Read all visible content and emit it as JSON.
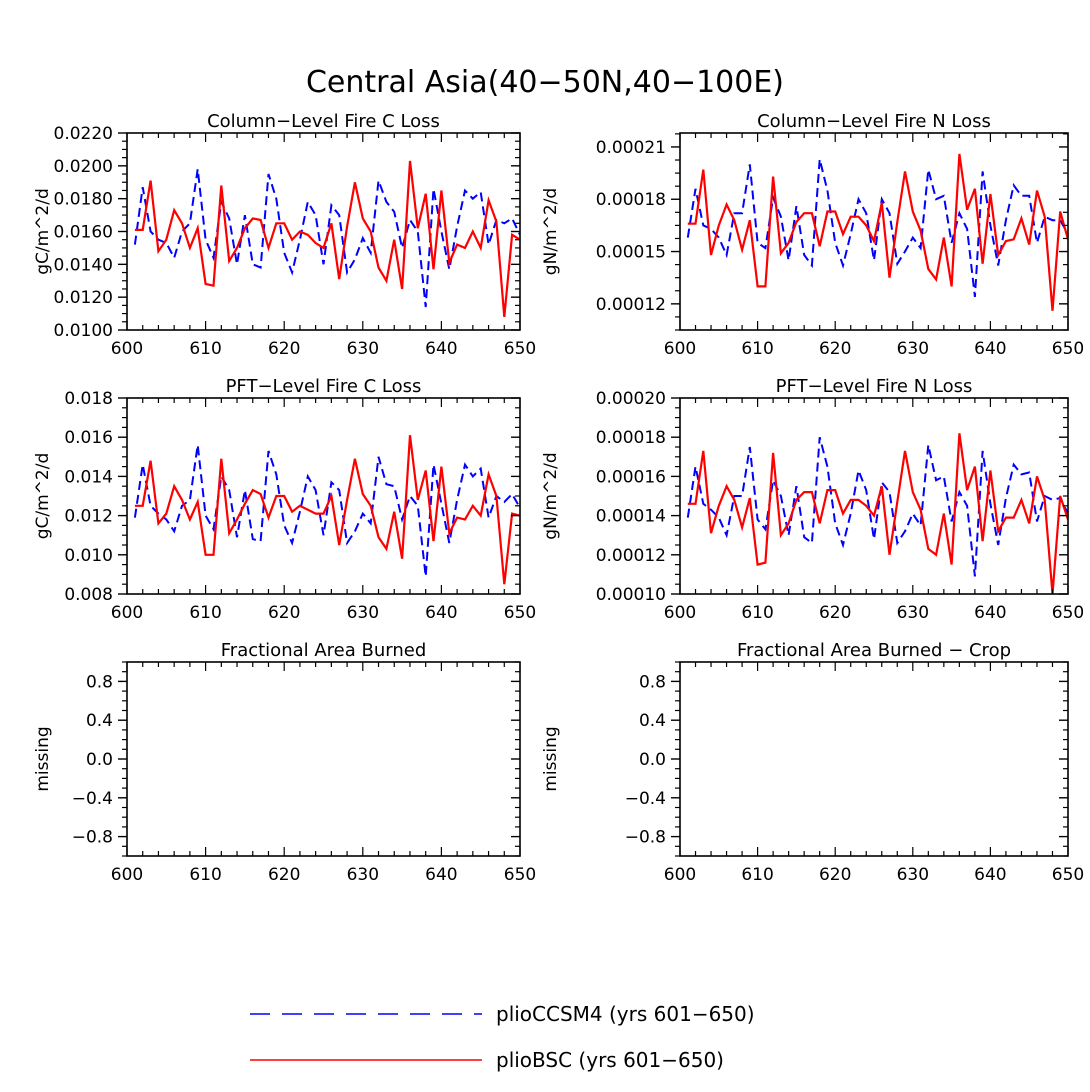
{
  "figure": {
    "title": "Central Asia(40−50N,40−100E)"
  },
  "colors": {
    "ccsm4": "#0000ff",
    "bsc": "#ff0000",
    "axis": "#000000"
  },
  "legend": {
    "entries": [
      {
        "name": "plioCCSM4 (yrs 601−650)",
        "style": "dashed",
        "color": "#0000ff"
      },
      {
        "name": "plioBSC (yrs 601−650)",
        "style": "solid",
        "color": "#ff0000"
      }
    ]
  },
  "chart_data": [
    {
      "type": "line",
      "title": "Column−Level Fire C Loss",
      "ylabel": "gC/m^2/d",
      "xlabel": "",
      "xlim": [
        600,
        650
      ],
      "ylim": [
        0.01,
        0.022
      ],
      "xticks": [
        600,
        610,
        620,
        630,
        640,
        650
      ],
      "xtick_labels": [
        "600",
        "610",
        "620",
        "630",
        "640",
        "650"
      ],
      "yticks": [
        0.01,
        0.012,
        0.014,
        0.016,
        0.018,
        0.02,
        0.022
      ],
      "ytick_labels": [
        "0.0100",
        "0.0120",
        "0.0140",
        "0.0160",
        "0.0180",
        "0.0200",
        "0.0220"
      ],
      "x_start": 601,
      "series": [
        {
          "name": "plioCCSM4 (yrs 601−650)",
          "values": [
            0.0152,
            0.0187,
            0.016,
            0.0155,
            0.0153,
            0.0144,
            0.016,
            0.0165,
            0.0198,
            0.0155,
            0.0144,
            0.0178,
            0.0168,
            0.014,
            0.017,
            0.014,
            0.0138,
            0.0195,
            0.018,
            0.0147,
            0.0135,
            0.0155,
            0.0178,
            0.017,
            0.014,
            0.0176,
            0.017,
            0.0135,
            0.0143,
            0.0156,
            0.0147,
            0.0191,
            0.0178,
            0.0172,
            0.015,
            0.0167,
            0.016,
            0.0114,
            0.0186,
            0.016,
            0.0137,
            0.0163,
            0.0185,
            0.018,
            0.0184,
            0.0152,
            0.0167,
            0.0165,
            0.0168,
            0.0158
          ]
        },
        {
          "name": "plioBSC (yrs 601−650)",
          "values": [
            0.0161,
            0.0161,
            0.0191,
            0.0148,
            0.0155,
            0.0173,
            0.0165,
            0.015,
            0.0162,
            0.0128,
            0.0127,
            0.0188,
            0.0142,
            0.015,
            0.0162,
            0.0168,
            0.0167,
            0.015,
            0.0165,
            0.0165,
            0.0155,
            0.016,
            0.0158,
            0.0153,
            0.015,
            0.0165,
            0.0131,
            0.0163,
            0.019,
            0.0168,
            0.016,
            0.0138,
            0.013,
            0.0155,
            0.0125,
            0.0203,
            0.0162,
            0.0183,
            0.0137,
            0.0185,
            0.0141,
            0.0152,
            0.015,
            0.016,
            0.015,
            0.0179,
            0.0166,
            0.0108,
            0.0158,
            0.0155
          ]
        }
      ]
    },
    {
      "type": "line",
      "title": "Column−Level Fire N Loss",
      "ylabel": "gN/m^2/d",
      "xlabel": "",
      "xlim": [
        600,
        650
      ],
      "ylim": [
        0.000105,
        0.000218
      ],
      "xticks": [
        600,
        610,
        620,
        630,
        640,
        650
      ],
      "xtick_labels": [
        "600",
        "610",
        "620",
        "630",
        "640",
        "650"
      ],
      "yticks": [
        0.00012,
        0.00015,
        0.00018,
        0.00021
      ],
      "ytick_labels": [
        "0.00012",
        "0.00015",
        "0.00018",
        "0.00021"
      ],
      "x_start": 601,
      "series": [
        {
          "name": "plioCCSM4 (yrs 601−650)",
          "values": [
            0.000158,
            0.000186,
            0.000165,
            0.000163,
            0.000158,
            0.000148,
            0.000172,
            0.000172,
            0.0002,
            0.000155,
            0.000152,
            0.000181,
            0.00017,
            0.000145,
            0.000176,
            0.000148,
            0.000142,
            0.000203,
            0.000185,
            0.000155,
            0.000142,
            0.00016,
            0.00018,
            0.000172,
            0.000145,
            0.00018,
            0.000172,
            0.000143,
            0.00015,
            0.000158,
            0.000152,
            0.000197,
            0.00018,
            0.000182,
            0.000155,
            0.000172,
            0.000163,
            0.000124,
            0.000196,
            0.000165,
            0.000142,
            0.000168,
            0.000188,
            0.000182,
            0.000182,
            0.000155,
            0.00017,
            0.000168,
            0.000168,
            0.00016
          ]
        },
        {
          "name": "plioBSC (yrs 601−650)",
          "values": [
            0.000166,
            0.000166,
            0.000197,
            0.000148,
            0.000165,
            0.000177,
            0.000168,
            0.000151,
            0.000168,
            0.00013,
            0.00013,
            0.000193,
            0.000149,
            0.000155,
            0.000167,
            0.000172,
            0.000172,
            0.000153,
            0.000173,
            0.000173,
            0.00016,
            0.00017,
            0.00017,
            0.000165,
            0.000156,
            0.000178,
            0.000135,
            0.000167,
            0.000196,
            0.000173,
            0.000162,
            0.00014,
            0.000134,
            0.000158,
            0.00013,
            0.000206,
            0.000174,
            0.000186,
            0.000143,
            0.000183,
            0.000148,
            0.000156,
            0.000157,
            0.000169,
            0.000154,
            0.000185,
            0.00017,
            0.000116,
            0.000173,
            0.000157
          ]
        }
      ]
    },
    {
      "type": "line",
      "title": "PFT−Level Fire C Loss",
      "ylabel": "gC/m^2/d",
      "xlabel": "",
      "xlim": [
        600,
        650
      ],
      "ylim": [
        0.008,
        0.018
      ],
      "xticks": [
        600,
        610,
        620,
        630,
        640,
        650
      ],
      "xtick_labels": [
        "600",
        "610",
        "620",
        "630",
        "640",
        "650"
      ],
      "yticks": [
        0.008,
        0.01,
        0.012,
        0.014,
        0.016,
        0.018
      ],
      "ytick_labels": [
        "0.008",
        "0.010",
        "0.012",
        "0.014",
        "0.016",
        "0.018"
      ],
      "x_start": 601,
      "series": [
        {
          "name": "plioCCSM4 (yrs 601−650)",
          "values": [
            0.0119,
            0.0146,
            0.0125,
            0.0121,
            0.0118,
            0.0112,
            0.0125,
            0.0128,
            0.0156,
            0.012,
            0.0113,
            0.014,
            0.0133,
            0.0109,
            0.0133,
            0.0108,
            0.0107,
            0.0153,
            0.0141,
            0.0115,
            0.0106,
            0.0122,
            0.014,
            0.0133,
            0.011,
            0.0137,
            0.0133,
            0.0106,
            0.0112,
            0.0121,
            0.0116,
            0.015,
            0.0136,
            0.0135,
            0.0118,
            0.013,
            0.0125,
            0.0089,
            0.0146,
            0.0126,
            0.0106,
            0.0128,
            0.0146,
            0.014,
            0.0144,
            0.0119,
            0.013,
            0.0127,
            0.0131,
            0.0124
          ]
        },
        {
          "name": "plioBSC (yrs 601−650)",
          "values": [
            0.0125,
            0.0125,
            0.0148,
            0.0116,
            0.0121,
            0.0135,
            0.0128,
            0.0118,
            0.0127,
            0.01,
            0.01,
            0.0149,
            0.0111,
            0.0118,
            0.0126,
            0.0133,
            0.0131,
            0.0119,
            0.013,
            0.013,
            0.0122,
            0.0125,
            0.0123,
            0.0121,
            0.0121,
            0.013,
            0.0105,
            0.0128,
            0.0149,
            0.0131,
            0.0125,
            0.0109,
            0.0103,
            0.0122,
            0.0098,
            0.0161,
            0.0128,
            0.0143,
            0.0107,
            0.0145,
            0.0111,
            0.0119,
            0.0118,
            0.0125,
            0.012,
            0.0141,
            0.013,
            0.0085,
            0.0121,
            0.012
          ]
        }
      ]
    },
    {
      "type": "line",
      "title": "PFT−Level Fire N Loss",
      "ylabel": "gN/m^2/d",
      "xlabel": "",
      "xlim": [
        600,
        650
      ],
      "ylim": [
        0.0001,
        0.0002
      ],
      "xticks": [
        600,
        610,
        620,
        630,
        640,
        650
      ],
      "xtick_labels": [
        "600",
        "610",
        "620",
        "630",
        "640",
        "650"
      ],
      "yticks": [
        0.0001,
        0.00012,
        0.00014,
        0.00016,
        0.00018,
        0.0002
      ],
      "ytick_labels": [
        "0.00010",
        "0.00012",
        "0.00014",
        "0.00016",
        "0.00018",
        "0.00020"
      ],
      "x_start": 601,
      "series": [
        {
          "name": "plioCCSM4 (yrs 601−650)",
          "values": [
            0.000139,
            0.000165,
            0.000146,
            0.000143,
            0.000139,
            0.00013,
            0.00015,
            0.00015,
            0.000175,
            0.000138,
            0.000133,
            0.000158,
            0.00015,
            0.00013,
            0.000155,
            0.000129,
            0.000126,
            0.00018,
            0.000165,
            0.000136,
            0.000125,
            0.000141,
            0.000163,
            0.000153,
            0.000128,
            0.000157,
            0.000152,
            0.000126,
            0.000132,
            0.000141,
            0.000135,
            0.000176,
            0.000158,
            0.00016,
            0.000137,
            0.000152,
            0.000145,
            0.000109,
            0.000173,
            0.000146,
            0.000125,
            0.000149,
            0.000166,
            0.000161,
            0.000162,
            0.000137,
            0.00015,
            0.000148,
            0.000149,
            0.000141
          ]
        },
        {
          "name": "plioBSC (yrs 601−650)",
          "values": [
            0.000146,
            0.000146,
            0.000173,
            0.000131,
            0.000145,
            0.000155,
            0.000148,
            0.000134,
            0.000149,
            0.000115,
            0.000116,
            0.000172,
            0.00013,
            0.000136,
            0.000148,
            0.000152,
            0.000152,
            0.000136,
            0.000153,
            0.000153,
            0.000141,
            0.000148,
            0.000148,
            0.000145,
            0.00014,
            0.000155,
            0.00012,
            0.000147,
            0.000173,
            0.000152,
            0.000143,
            0.000123,
            0.00012,
            0.000141,
            0.000115,
            0.000182,
            0.000153,
            0.000165,
            0.000127,
            0.000163,
            0.000132,
            0.000139,
            0.000139,
            0.000148,
            0.000136,
            0.00016,
            0.000148,
            0.0001,
            0.00015,
            0.000138
          ]
        }
      ]
    },
    {
      "type": "line",
      "title": "Fractional Area Burned",
      "ylabel": "missing",
      "xlabel": "",
      "xlim": [
        600,
        650
      ],
      "ylim": [
        -1.0,
        1.0
      ],
      "xticks": [
        600,
        610,
        620,
        630,
        640,
        650
      ],
      "xtick_labels": [
        "600",
        "610",
        "620",
        "630",
        "640",
        "650"
      ],
      "yticks": [
        -0.8,
        -0.4,
        0.0,
        0.4,
        0.8
      ],
      "ytick_labels": [
        "−0.8",
        "−0.4",
        "0.0",
        "0.4",
        "0.8"
      ],
      "x_start": 601,
      "series": []
    },
    {
      "type": "line",
      "title": "Fractional Area Burned − Crop",
      "ylabel": "missing",
      "xlabel": "",
      "xlim": [
        600,
        650
      ],
      "ylim": [
        -1.0,
        1.0
      ],
      "xticks": [
        600,
        610,
        620,
        630,
        640,
        650
      ],
      "xtick_labels": [
        "600",
        "610",
        "620",
        "630",
        "640",
        "650"
      ],
      "yticks": [
        -0.8,
        -0.4,
        0.0,
        0.4,
        0.8
      ],
      "ytick_labels": [
        "−0.8",
        "−0.4",
        "0.0",
        "0.4",
        "0.8"
      ],
      "x_start": 601,
      "series": []
    }
  ]
}
